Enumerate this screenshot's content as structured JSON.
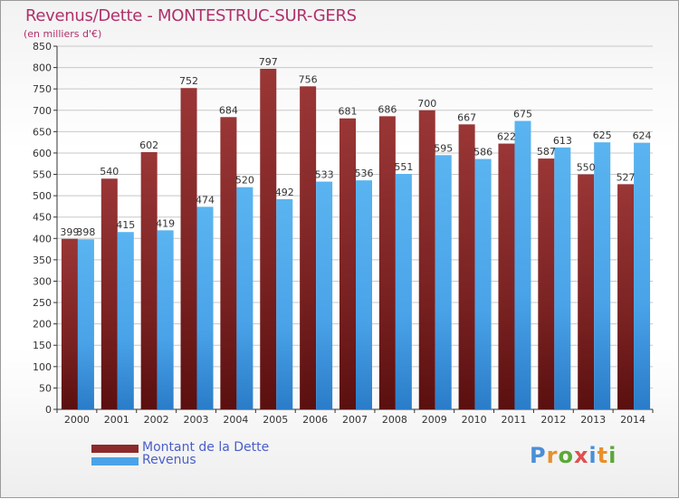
{
  "title": "Revenus/Dette - MONTESTRUC-SUR-GERS",
  "subtitle": "(en milliers d'€)",
  "logo": {
    "text": "Proxiti",
    "letter_colors": [
      "#4a8fd8",
      "#e8902a",
      "#5aa838",
      "#e05050",
      "#4a8fd8",
      "#e8902a",
      "#5aa838"
    ]
  },
  "colors": {
    "dette": "#8b2a2a",
    "revenus": "#4aa3e8",
    "axis": "#333333",
    "grid": "#c8c8c8",
    "label": "#333333"
  },
  "legend": [
    {
      "name": "Montant de la Dette",
      "color": "#8b2a2a"
    },
    {
      "name": "Revenus",
      "color": "#4aa3e8"
    }
  ],
  "chart_data": {
    "type": "bar",
    "title": "Revenus/Dette - MONTESTRUC-SUR-GERS",
    "subtitle": "(en milliers d'€)",
    "categories": [
      "2000",
      "2001",
      "2002",
      "2003",
      "2004",
      "2005",
      "2006",
      "2007",
      "2008",
      "2009",
      "2010",
      "2011",
      "2012",
      "2013",
      "2014"
    ],
    "series": [
      {
        "name": "Montant de la Dette",
        "values": [
          399,
          540,
          602,
          752,
          684,
          797,
          756,
          681,
          686,
          700,
          667,
          622,
          587,
          550,
          527
        ]
      },
      {
        "name": "Revenus",
        "values": [
          398,
          415,
          419,
          474,
          520,
          492,
          533,
          536,
          551,
          595,
          586,
          675,
          613,
          625,
          624
        ]
      }
    ],
    "ylim": [
      0,
      850
    ],
    "yticks": [
      0,
      50,
      100,
      150,
      200,
      250,
      300,
      350,
      400,
      450,
      500,
      550,
      600,
      650,
      700,
      750,
      800,
      850
    ],
    "grid": true,
    "legend_position": "bottom-left"
  }
}
